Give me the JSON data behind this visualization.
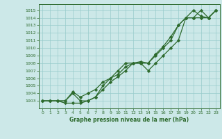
{
  "x": [
    0,
    1,
    2,
    3,
    4,
    5,
    6,
    7,
    8,
    9,
    10,
    11,
    12,
    13,
    14,
    15,
    16,
    17,
    18,
    19,
    20,
    21,
    22,
    23
  ],
  "line1": [
    1003,
    1003,
    1003,
    1003,
    1004,
    1003,
    1003,
    1003.5,
    1005,
    1006,
    1007,
    1008,
    1008,
    1008,
    1007,
    1008,
    1009,
    1010,
    1011,
    1014,
    1014,
    1014,
    1014,
    1015
  ],
  "line2": [
    1003,
    1003,
    1003,
    1002.7,
    1002.7,
    1002.7,
    1003,
    1003.5,
    1004.5,
    1005.5,
    1006.2,
    1007,
    1008,
    1008,
    1008,
    1009,
    1010,
    1011,
    1013,
    1014,
    1014,
    1015,
    1014,
    1015
  ],
  "line3": [
    1003,
    1003,
    1003,
    1003,
    1004.2,
    1003.5,
    1004,
    1004.5,
    1005.5,
    1006,
    1006.5,
    1007.5,
    1008,
    1008.2,
    1008,
    1009.2,
    1010.2,
    1011.5,
    1013,
    1014,
    1015,
    1014.2,
    1014,
    1015
  ],
  "line_color": "#2d6a2d",
  "bg_color": "#cce8e8",
  "grid_color": "#99cccc",
  "text_color": "#2d6a2d",
  "ylim": [
    1002,
    1015.8
  ],
  "xlim": [
    -0.5,
    23.5
  ],
  "yticks": [
    1003,
    1004,
    1005,
    1006,
    1007,
    1008,
    1009,
    1010,
    1011,
    1012,
    1013,
    1014,
    1015
  ],
  "xticks": [
    0,
    1,
    2,
    3,
    4,
    5,
    6,
    7,
    8,
    9,
    10,
    11,
    12,
    13,
    14,
    15,
    16,
    17,
    18,
    19,
    20,
    21,
    22,
    23
  ],
  "xlabel": "Graphe pression niveau de la mer (hPa)",
  "marker": "D",
  "marker_size": 2.2,
  "linewidth": 0.9
}
